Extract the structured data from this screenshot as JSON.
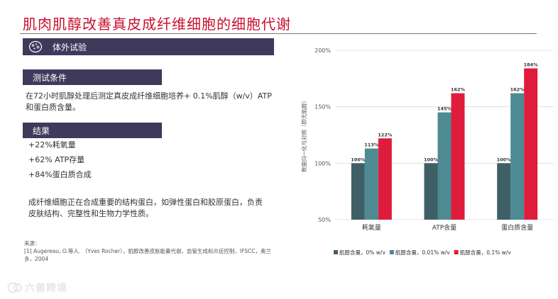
{
  "page": {
    "title": "肌肉肌醇改善真皮成纤维细胞的细胞代谢",
    "section_in_vitro": "体外试验",
    "test_conditions_header": "测试条件",
    "test_conditions_text": "在72小时肌醇处理后测定真皮成纤维细胞培养+ 0.1%肌醇（w/v）ATP和蛋白质含量。",
    "results_header": "结果",
    "results": [
      "+22%耗氧量",
      "+62% ATP存量",
      "+84%蛋白质合成"
    ],
    "description": "成纤维细胞正在合成重要的结构蛋白，如弹性蛋白和胶原蛋白，负责皮肤结构、完整性和生物力学性质。",
    "source_label": "来源：",
    "source_text": "[1]  Augereau, O.等人.  （Yves Rocher），肌醇改善皮肤能量代谢，血管生成和炎症控制，IFSCC，奥兰多，2004",
    "watermark": "六兽跨境",
    "watermark_icon": "vc-logo-icon"
  },
  "chart_data": {
    "type": "bar",
    "title": "",
    "ylabel": "数据归一化与对照（即无肌醇）",
    "xlabel": "",
    "ylim": [
      50,
      200
    ],
    "yticks": [
      50,
      100,
      150,
      200
    ],
    "ytick_labels": [
      "50%",
      "100%",
      "150%",
      "200%"
    ],
    "grid": true,
    "categories": [
      "耗氧量",
      "ATP含量",
      "蛋白质含量"
    ],
    "series": [
      {
        "name": "肌醇含量，0% w/v",
        "values": [
          100,
          100,
          100
        ],
        "labels": [
          "100%",
          "100%",
          "100%"
        ],
        "color": "#3f5f66"
      },
      {
        "name": "肌醇含量，0.01% w/v",
        "values": [
          113,
          145,
          162
        ],
        "labels": [
          "113%",
          "145%",
          "162%"
        ],
        "color": "#4e8a91"
      },
      {
        "name": "肌醇含量，0.1% w/v",
        "values": [
          122,
          162,
          184
        ],
        "labels": [
          "122%",
          "162%",
          "184%"
        ],
        "color": "#e01c3c"
      }
    ],
    "legend_position": "bottom"
  }
}
